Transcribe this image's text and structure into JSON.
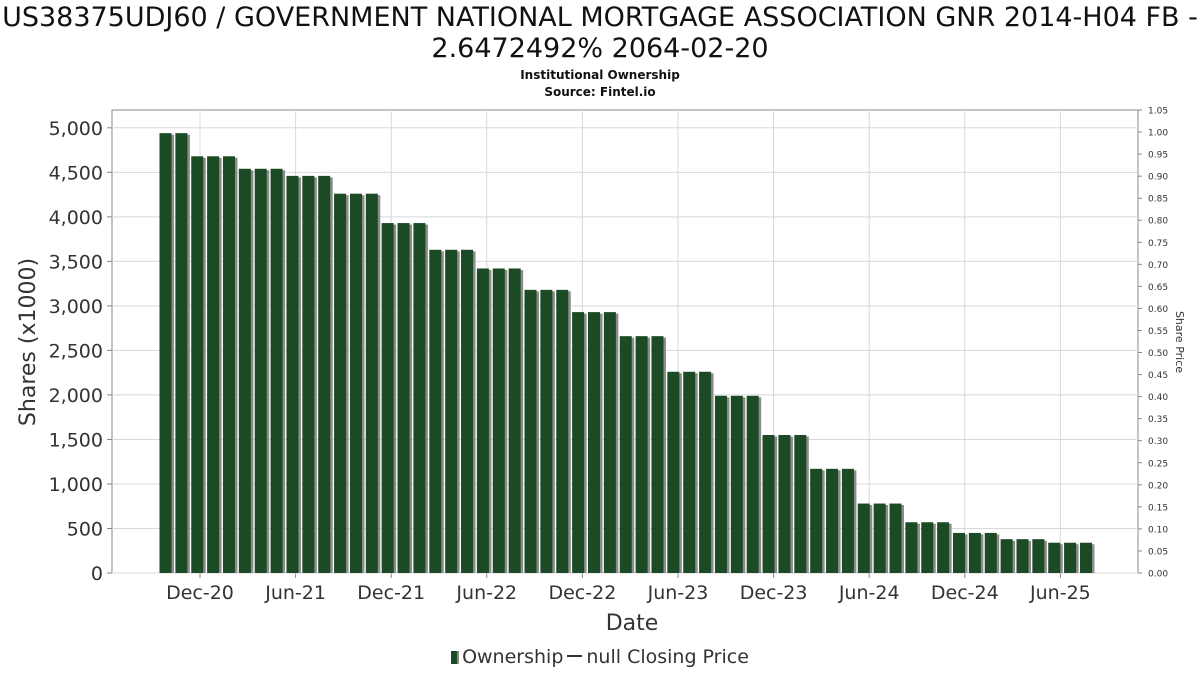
{
  "title": "US38375UDJ60 / GOVERNMENT NATIONAL MORTGAGE ASSOCIATION GNR 2014-H04 FB - 2.6472492% 2064-02-20",
  "subtitle": "Institutional Ownership",
  "source": "Source: Fintel.io",
  "colors": {
    "bar": "#1b4a25",
    "bar_shadow": "#8c8c8c",
    "grid": "#d8d8d8",
    "axis": "#888888",
    "text": "#333333"
  },
  "chart_data": {
    "type": "bar",
    "xlabel": "Date",
    "ylabel": "Shares (x1000)",
    "ylabel_right": "Share Price",
    "ylim": [
      0,
      5200
    ],
    "ylim_right": [
      0,
      1.05
    ],
    "yticks": [
      "0",
      "500",
      "1,000",
      "1,500",
      "2,000",
      "2,500",
      "3,000",
      "3,500",
      "4,000",
      "4,500",
      "5,000"
    ],
    "yticks_right": [
      "0.00",
      "0.05",
      "0.10",
      "0.15",
      "0.20",
      "0.25",
      "0.30",
      "0.35",
      "0.40",
      "0.45",
      "0.50",
      "0.55",
      "0.60",
      "0.65",
      "0.70",
      "0.75",
      "0.80",
      "0.85",
      "0.90",
      "0.95",
      "1.00",
      "1.05"
    ],
    "xticks": [
      "Dec-20",
      "Jun-21",
      "Dec-21",
      "Jun-22",
      "Dec-22",
      "Jun-23",
      "Dec-23",
      "Jun-24",
      "Dec-24",
      "Jun-25"
    ],
    "grid": true,
    "series": [
      {
        "name": "Ownership",
        "values": [
          4940,
          4940,
          4680,
          4680,
          4680,
          4540,
          4540,
          4540,
          4460,
          4460,
          4460,
          4260,
          4260,
          4260,
          3930,
          3930,
          3930,
          3630,
          3630,
          3630,
          3420,
          3420,
          3420,
          3180,
          3180,
          3180,
          2930,
          2930,
          2930,
          2660,
          2660,
          2660,
          2260,
          2260,
          2260,
          1990,
          1990,
          1990,
          1550,
          1550,
          1550,
          1170,
          1170,
          1170,
          780,
          780,
          780,
          570,
          570,
          570,
          450,
          450,
          450,
          380,
          380,
          380,
          340,
          340,
          340
        ]
      },
      {
        "name": "null Closing Price",
        "values": []
      }
    ],
    "legend": [
      "Ownership",
      "null Closing Price"
    ],
    "legend_position": "bottom"
  }
}
